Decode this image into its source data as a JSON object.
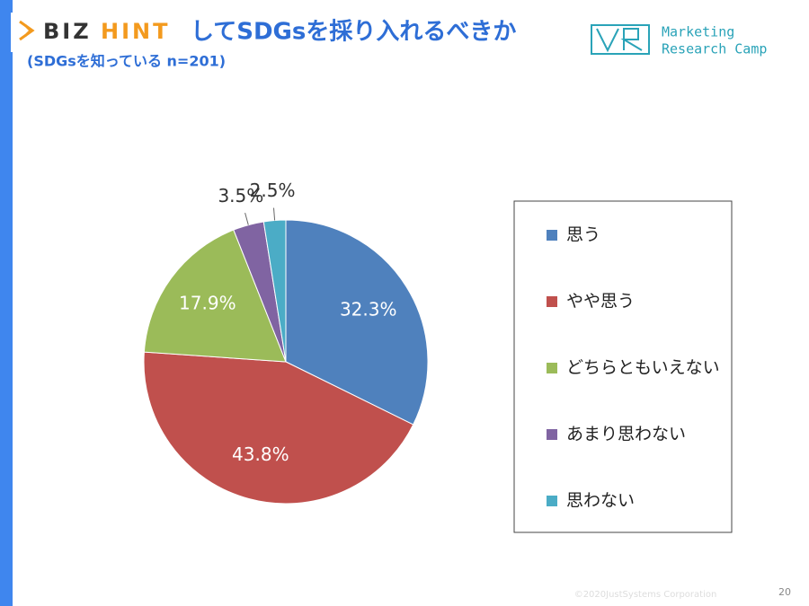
{
  "header": {
    "logo_left": "BIZ",
    "logo_right": "HINT",
    "brand_line1": "Marketing",
    "brand_line2": "Research Camp"
  },
  "chart_data": {
    "type": "pie",
    "title": "してSDGsを採り入れるべきか",
    "subtitle": "(SDGsを知っている n=201)",
    "categories": [
      "思う",
      "やや思う",
      "どちらともいえない",
      "あまり思わない",
      "思わない"
    ],
    "values": [
      32.3,
      43.8,
      17.9,
      3.5,
      2.5
    ],
    "value_labels": [
      "32.3%",
      "43.8%",
      "17.9%",
      "3.5%",
      "2.5%"
    ],
    "colors": [
      "#4f81bd",
      "#c0504d",
      "#9bbb59",
      "#8064a2",
      "#4bacc6"
    ],
    "legend": "right"
  },
  "footer": {
    "copyright": "©2020JustSystems Corporation",
    "page": "20"
  }
}
